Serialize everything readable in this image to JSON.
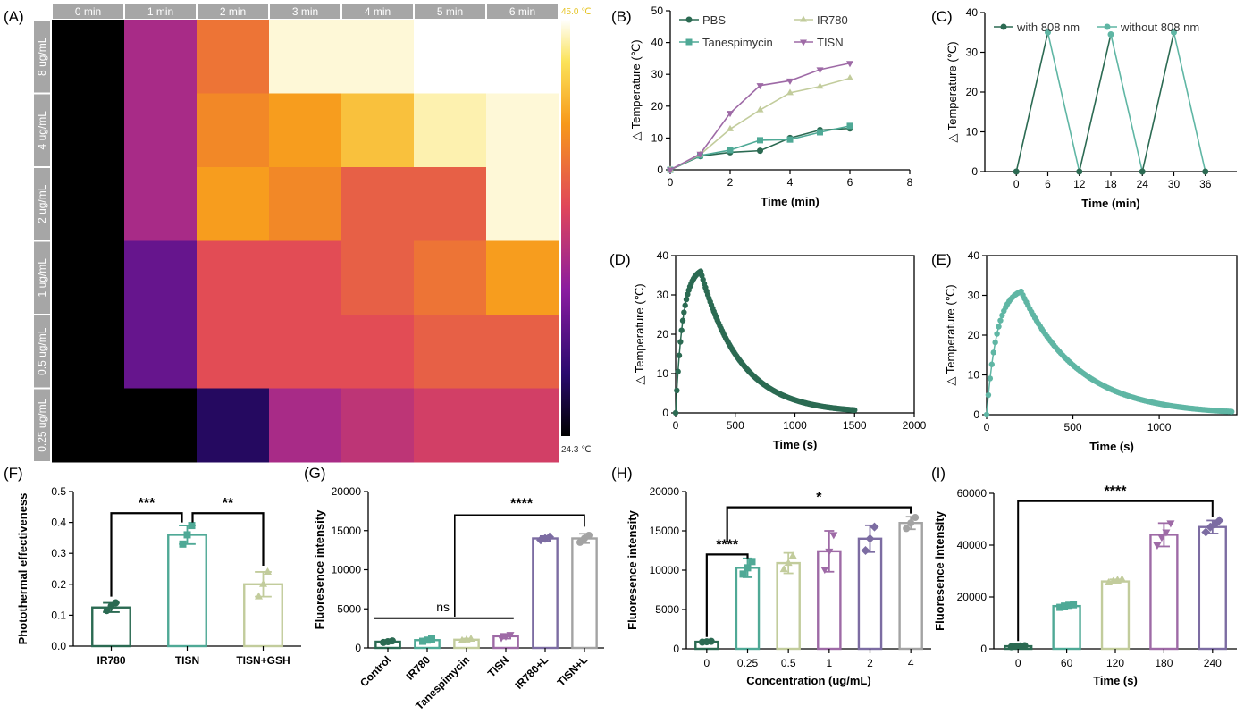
{
  "colors": {
    "pbs": "#2b6a52",
    "tanes": "#4fa996",
    "ir780": "#c2cc9c",
    "tisn": "#9e6aa6",
    "purple2": "#7c6ca2",
    "gray": "#a3a3a3",
    "teal_light": "#5fb6a4"
  },
  "panel_a": {
    "label": "(A)",
    "time_labels": [
      "0 min",
      "1 min",
      "2 min",
      "3 min",
      "4 min",
      "5 min",
      "6 min"
    ],
    "conc_labels": [
      "8 ug/mL",
      "4 ug/mL",
      "2 ug/mL",
      "1 ug/mL",
      "0.5 ug/mL",
      "0.25 ug/mL"
    ],
    "temp_max": "45.0 ℃",
    "temp_min": "24.3 ℃",
    "chart_data": {
      "type": "heatmap",
      "value_range": [
        24.3,
        45.0
      ],
      "columns": [
        "0 min",
        "1 min",
        "2 min",
        "3 min",
        "4 min",
        "5 min",
        "6 min"
      ],
      "rows": [
        "8 ug/mL",
        "4 ug/mL",
        "2 ug/mL",
        "1 ug/mL",
        "0.5 ug/mL",
        "0.25 ug/mL"
      ],
      "values": [
        [
          24.3,
          33,
          38,
          44.5,
          44.5,
          45,
          45
        ],
        [
          24.3,
          33,
          39,
          40,
          41.5,
          44,
          44.5
        ],
        [
          24.3,
          33,
          40,
          39,
          37,
          37,
          44.5
        ],
        [
          24.3,
          30,
          36,
          36,
          37,
          38,
          40
        ],
        [
          24.3,
          30,
          36,
          36,
          36,
          37,
          37
        ],
        [
          24.3,
          24.3,
          27,
          33,
          34,
          35,
          35
        ]
      ]
    }
  },
  "panel_b": {
    "label": "(B)",
    "xlabel": "Time (min)",
    "ylabel": "△ Temperature (℃)",
    "xticks": [
      "0",
      "2",
      "4",
      "6",
      "8"
    ],
    "yticks": [
      "0",
      "10",
      "20",
      "30",
      "40",
      "50"
    ],
    "chart_data": {
      "type": "line",
      "xlim": [
        0,
        8
      ],
      "ylim": [
        0,
        50
      ],
      "x": [
        0,
        1,
        2,
        3,
        4,
        5,
        6
      ],
      "series": [
        {
          "name": "PBS",
          "values": [
            0,
            4.3,
            5.5,
            6,
            10,
            12.5,
            13
          ]
        },
        {
          "name": "Tanespimycin",
          "values": [
            0,
            4.5,
            6.2,
            9.3,
            9.5,
            11.8,
            13.8
          ]
        },
        {
          "name": "IR780",
          "values": [
            0,
            4.8,
            12.8,
            18.8,
            24.2,
            26.2,
            28.8
          ]
        },
        {
          "name": "TISN",
          "values": [
            0,
            5,
            17.8,
            26.5,
            28,
            31.5,
            33.5
          ]
        }
      ]
    }
  },
  "panel_c": {
    "label": "(C)",
    "xlabel": "Time (min)",
    "ylabel": "△ Temperature (℃)",
    "xticks": [
      "0",
      "6",
      "12",
      "18",
      "24",
      "30",
      "36"
    ],
    "yticks": [
      "0",
      "10",
      "20",
      "30",
      "40"
    ],
    "chart_data": {
      "type": "line",
      "xlim": [
        -6,
        42
      ],
      "ylim": [
        0,
        40
      ],
      "series": [
        {
          "name": "with 808 nm",
          "x": [
            0,
            6,
            12,
            18,
            24,
            30,
            36
          ],
          "values": [
            0,
            35,
            0,
            34.5,
            0,
            35,
            0
          ]
        },
        {
          "name": "without 808 nm",
          "x": [
            0,
            6,
            12,
            18,
            24,
            30,
            36
          ],
          "values": [
            0,
            35,
            0,
            34.5,
            0,
            35,
            0
          ]
        }
      ]
    }
  },
  "panel_d": {
    "label": "(D)",
    "xlabel": "Time (s)",
    "ylabel": "△ Temperature (℃)",
    "xticks": [
      "0",
      "500",
      "1000",
      "1500",
      "2000"
    ],
    "yticks": [
      "0",
      "10",
      "20",
      "30",
      "40"
    ],
    "chart_data": {
      "type": "line",
      "xlim": [
        0,
        2000
      ],
      "ylim": [
        0,
        40
      ],
      "peak_time": 210,
      "peak": 36,
      "tau": 330,
      "end": 1500
    }
  },
  "panel_e": {
    "label": "(E)",
    "xlabel": "Time (s)",
    "ylabel": "△ Temperature (℃)",
    "xticks": [
      "0",
      "500",
      "1000"
    ],
    "yticks": [
      "0",
      "10",
      "20",
      "30",
      "40"
    ],
    "chart_data": {
      "type": "line",
      "xlim": [
        0,
        1450
      ],
      "ylim": [
        0,
        40
      ],
      "peak_time": 200,
      "peak": 31,
      "tau": 330,
      "end": 1420
    }
  },
  "panel_f": {
    "label": "(F)",
    "ylabel": "Photothermal effectiveness",
    "yticks": [
      "0.0",
      "0.1",
      "0.2",
      "0.3",
      "0.4",
      "0.5"
    ],
    "sig": [
      "***",
      "**"
    ],
    "chart_data": {
      "type": "bar",
      "categories": [
        "IR780",
        "TISN",
        "TISN+GSH"
      ],
      "values": [
        0.125,
        0.36,
        0.2
      ],
      "errors": [
        0.015,
        0.03,
        0.04
      ],
      "ylim": [
        0,
        0.5
      ],
      "points": [
        [
          0.115,
          0.13,
          0.14
        ],
        [
          0.33,
          0.36,
          0.39
        ],
        [
          0.16,
          0.2,
          0.24
        ]
      ]
    }
  },
  "panel_g": {
    "label": "(G)",
    "ylabel": "Fluoresence intensity",
    "yticks": [
      "0",
      "5000",
      "10000",
      "15000",
      "20000"
    ],
    "sig": [
      "ns",
      "****"
    ],
    "chart_data": {
      "type": "bar",
      "categories": [
        "Control",
        "IR780",
        "Tanespimycin",
        "TISN",
        "IR780+L",
        "TISN+L"
      ],
      "values": [
        800,
        1000,
        1050,
        1500,
        14000,
        14000
      ],
      "errors": [
        150,
        200,
        150,
        300,
        300,
        600
      ],
      "ylim": [
        0,
        20000
      ],
      "points": [
        [
          700,
          800,
          900
        ],
        [
          850,
          1000,
          1150
        ],
        [
          950,
          1050,
          1150
        ],
        [
          1300,
          1500,
          1700
        ],
        [
          13800,
          14000,
          14200
        ],
        [
          13500,
          14000,
          14400
        ]
      ]
    }
  },
  "panel_h": {
    "label": "(H)",
    "ylabel": "Fluoresence intensity",
    "xlabel": "Concentration (ug/mL)",
    "yticks": [
      "0",
      "5000",
      "10000",
      "15000",
      "20000"
    ],
    "sig": [
      "****",
      "*"
    ],
    "chart_data": {
      "type": "bar",
      "categories": [
        "0",
        "0.25",
        "0.5",
        "1",
        "2",
        "4"
      ],
      "values": [
        900,
        10300,
        10900,
        12400,
        14000,
        16000
      ],
      "errors": [
        200,
        1200,
        1300,
        2600,
        1700,
        800
      ],
      "ylim": [
        0,
        20000
      ],
      "points": [
        [
          850,
          900,
          950
        ],
        [
          9500,
          10300,
          11100
        ],
        [
          10100,
          10900,
          11800
        ],
        [
          10100,
          12400,
          14500
        ],
        [
          12500,
          14000,
          15500
        ],
        [
          15300,
          16000,
          16700
        ]
      ]
    }
  },
  "panel_i": {
    "label": "(I)",
    "ylabel": "Fluoresence intensity",
    "xlabel": "Time (s)",
    "yticks": [
      "0",
      "20000",
      "40000",
      "60000"
    ],
    "sig": [
      "****"
    ],
    "chart_data": {
      "type": "bar",
      "categories": [
        "0",
        "60",
        "120",
        "180",
        "240"
      ],
      "values": [
        1000,
        16500,
        26000,
        44000,
        47000
      ],
      "errors": [
        200,
        500,
        800,
        4500,
        2500
      ],
      "ylim": [
        0,
        60000
      ],
      "points": [
        [
          800,
          1000,
          1100,
          1200
        ],
        [
          16000,
          16500,
          16800,
          17000
        ],
        [
          25500,
          26000,
          26500,
          26800
        ],
        [
          40000,
          43000,
          45000,
          48500
        ],
        [
          45000,
          47000,
          48000,
          49500
        ]
      ]
    }
  }
}
